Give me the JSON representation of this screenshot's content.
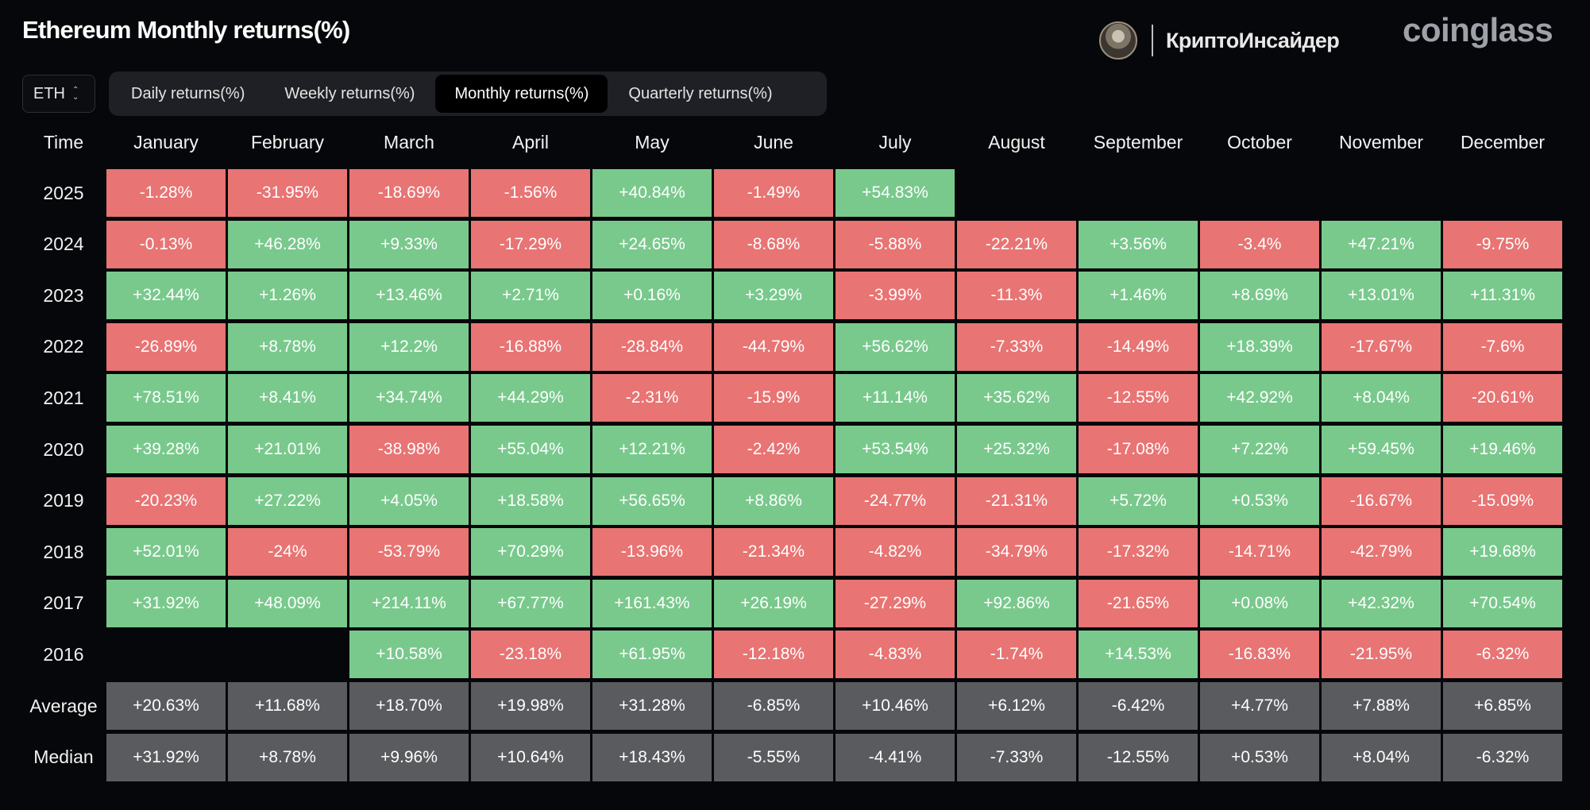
{
  "header": {
    "title": "Ethereum Monthly returns(%)",
    "brand_name": "КриптоИнсайдер",
    "logo": "coinglass"
  },
  "asset_select": {
    "value": "ETH"
  },
  "tabs": [
    {
      "label": "Daily returns(%)",
      "active": false
    },
    {
      "label": "Weekly returns(%)",
      "active": false
    },
    {
      "label": "Monthly returns(%)",
      "active": true
    },
    {
      "label": "Quarterly returns(%)",
      "active": false
    }
  ],
  "table": {
    "time_header": "Time",
    "months": [
      "January",
      "February",
      "March",
      "April",
      "May",
      "June",
      "July",
      "August",
      "September",
      "October",
      "November",
      "December"
    ],
    "rows": [
      {
        "label": "2025",
        "values": [
          "-1.28%",
          "-31.95%",
          "-18.69%",
          "-1.56%",
          "+40.84%",
          "-1.49%",
          "+54.83%",
          "",
          "",
          "",
          "",
          ""
        ]
      },
      {
        "label": "2024",
        "values": [
          "-0.13%",
          "+46.28%",
          "+9.33%",
          "-17.29%",
          "+24.65%",
          "-8.68%",
          "-5.88%",
          "-22.21%",
          "+3.56%",
          "-3.4%",
          "+47.21%",
          "-9.75%"
        ]
      },
      {
        "label": "2023",
        "values": [
          "+32.44%",
          "+1.26%",
          "+13.46%",
          "+2.71%",
          "+0.16%",
          "+3.29%",
          "-3.99%",
          "-11.3%",
          "+1.46%",
          "+8.69%",
          "+13.01%",
          "+11.31%"
        ]
      },
      {
        "label": "2022",
        "values": [
          "-26.89%",
          "+8.78%",
          "+12.2%",
          "-16.88%",
          "-28.84%",
          "-44.79%",
          "+56.62%",
          "-7.33%",
          "-14.49%",
          "+18.39%",
          "-17.67%",
          "-7.6%"
        ]
      },
      {
        "label": "2021",
        "values": [
          "+78.51%",
          "+8.41%",
          "+34.74%",
          "+44.29%",
          "-2.31%",
          "-15.9%",
          "+11.14%",
          "+35.62%",
          "-12.55%",
          "+42.92%",
          "+8.04%",
          "-20.61%"
        ]
      },
      {
        "label": "2020",
        "values": [
          "+39.28%",
          "+21.01%",
          "-38.98%",
          "+55.04%",
          "+12.21%",
          "-2.42%",
          "+53.54%",
          "+25.32%",
          "-17.08%",
          "+7.22%",
          "+59.45%",
          "+19.46%"
        ]
      },
      {
        "label": "2019",
        "values": [
          "-20.23%",
          "+27.22%",
          "+4.05%",
          "+18.58%",
          "+56.65%",
          "+8.86%",
          "-24.77%",
          "-21.31%",
          "+5.72%",
          "+0.53%",
          "-16.67%",
          "-15.09%"
        ]
      },
      {
        "label": "2018",
        "values": [
          "+52.01%",
          "-24%",
          "-53.79%",
          "+70.29%",
          "-13.96%",
          "-21.34%",
          "-4.82%",
          "-34.79%",
          "-17.32%",
          "-14.71%",
          "-42.79%",
          "+19.68%"
        ]
      },
      {
        "label": "2017",
        "values": [
          "+31.92%",
          "+48.09%",
          "+214.11%",
          "+67.77%",
          "+161.43%",
          "+26.19%",
          "-27.29%",
          "+92.86%",
          "-21.65%",
          "+0.08%",
          "+42.32%",
          "+70.54%"
        ]
      },
      {
        "label": "2016",
        "values": [
          "",
          "",
          "+10.58%",
          "-23.18%",
          "+61.95%",
          "-12.18%",
          "-4.83%",
          "-1.74%",
          "+14.53%",
          "-16.83%",
          "-21.95%",
          "-6.32%"
        ]
      }
    ],
    "summary": [
      {
        "label": "Average",
        "values": [
          "+20.63%",
          "+11.68%",
          "+18.70%",
          "+19.98%",
          "+31.28%",
          "-6.85%",
          "+10.46%",
          "+6.12%",
          "-6.42%",
          "+4.77%",
          "+7.88%",
          "+6.85%"
        ]
      },
      {
        "label": "Median",
        "values": [
          "+31.92%",
          "+8.78%",
          "+9.96%",
          "+10.64%",
          "+18.43%",
          "-5.55%",
          "-4.41%",
          "-7.33%",
          "-12.55%",
          "+0.53%",
          "+8.04%",
          "-6.32%"
        ]
      }
    ]
  },
  "colors": {
    "positive": "#79c98c",
    "negative": "#e87473",
    "summary": "#5a5b5e",
    "background": "#06070a"
  }
}
